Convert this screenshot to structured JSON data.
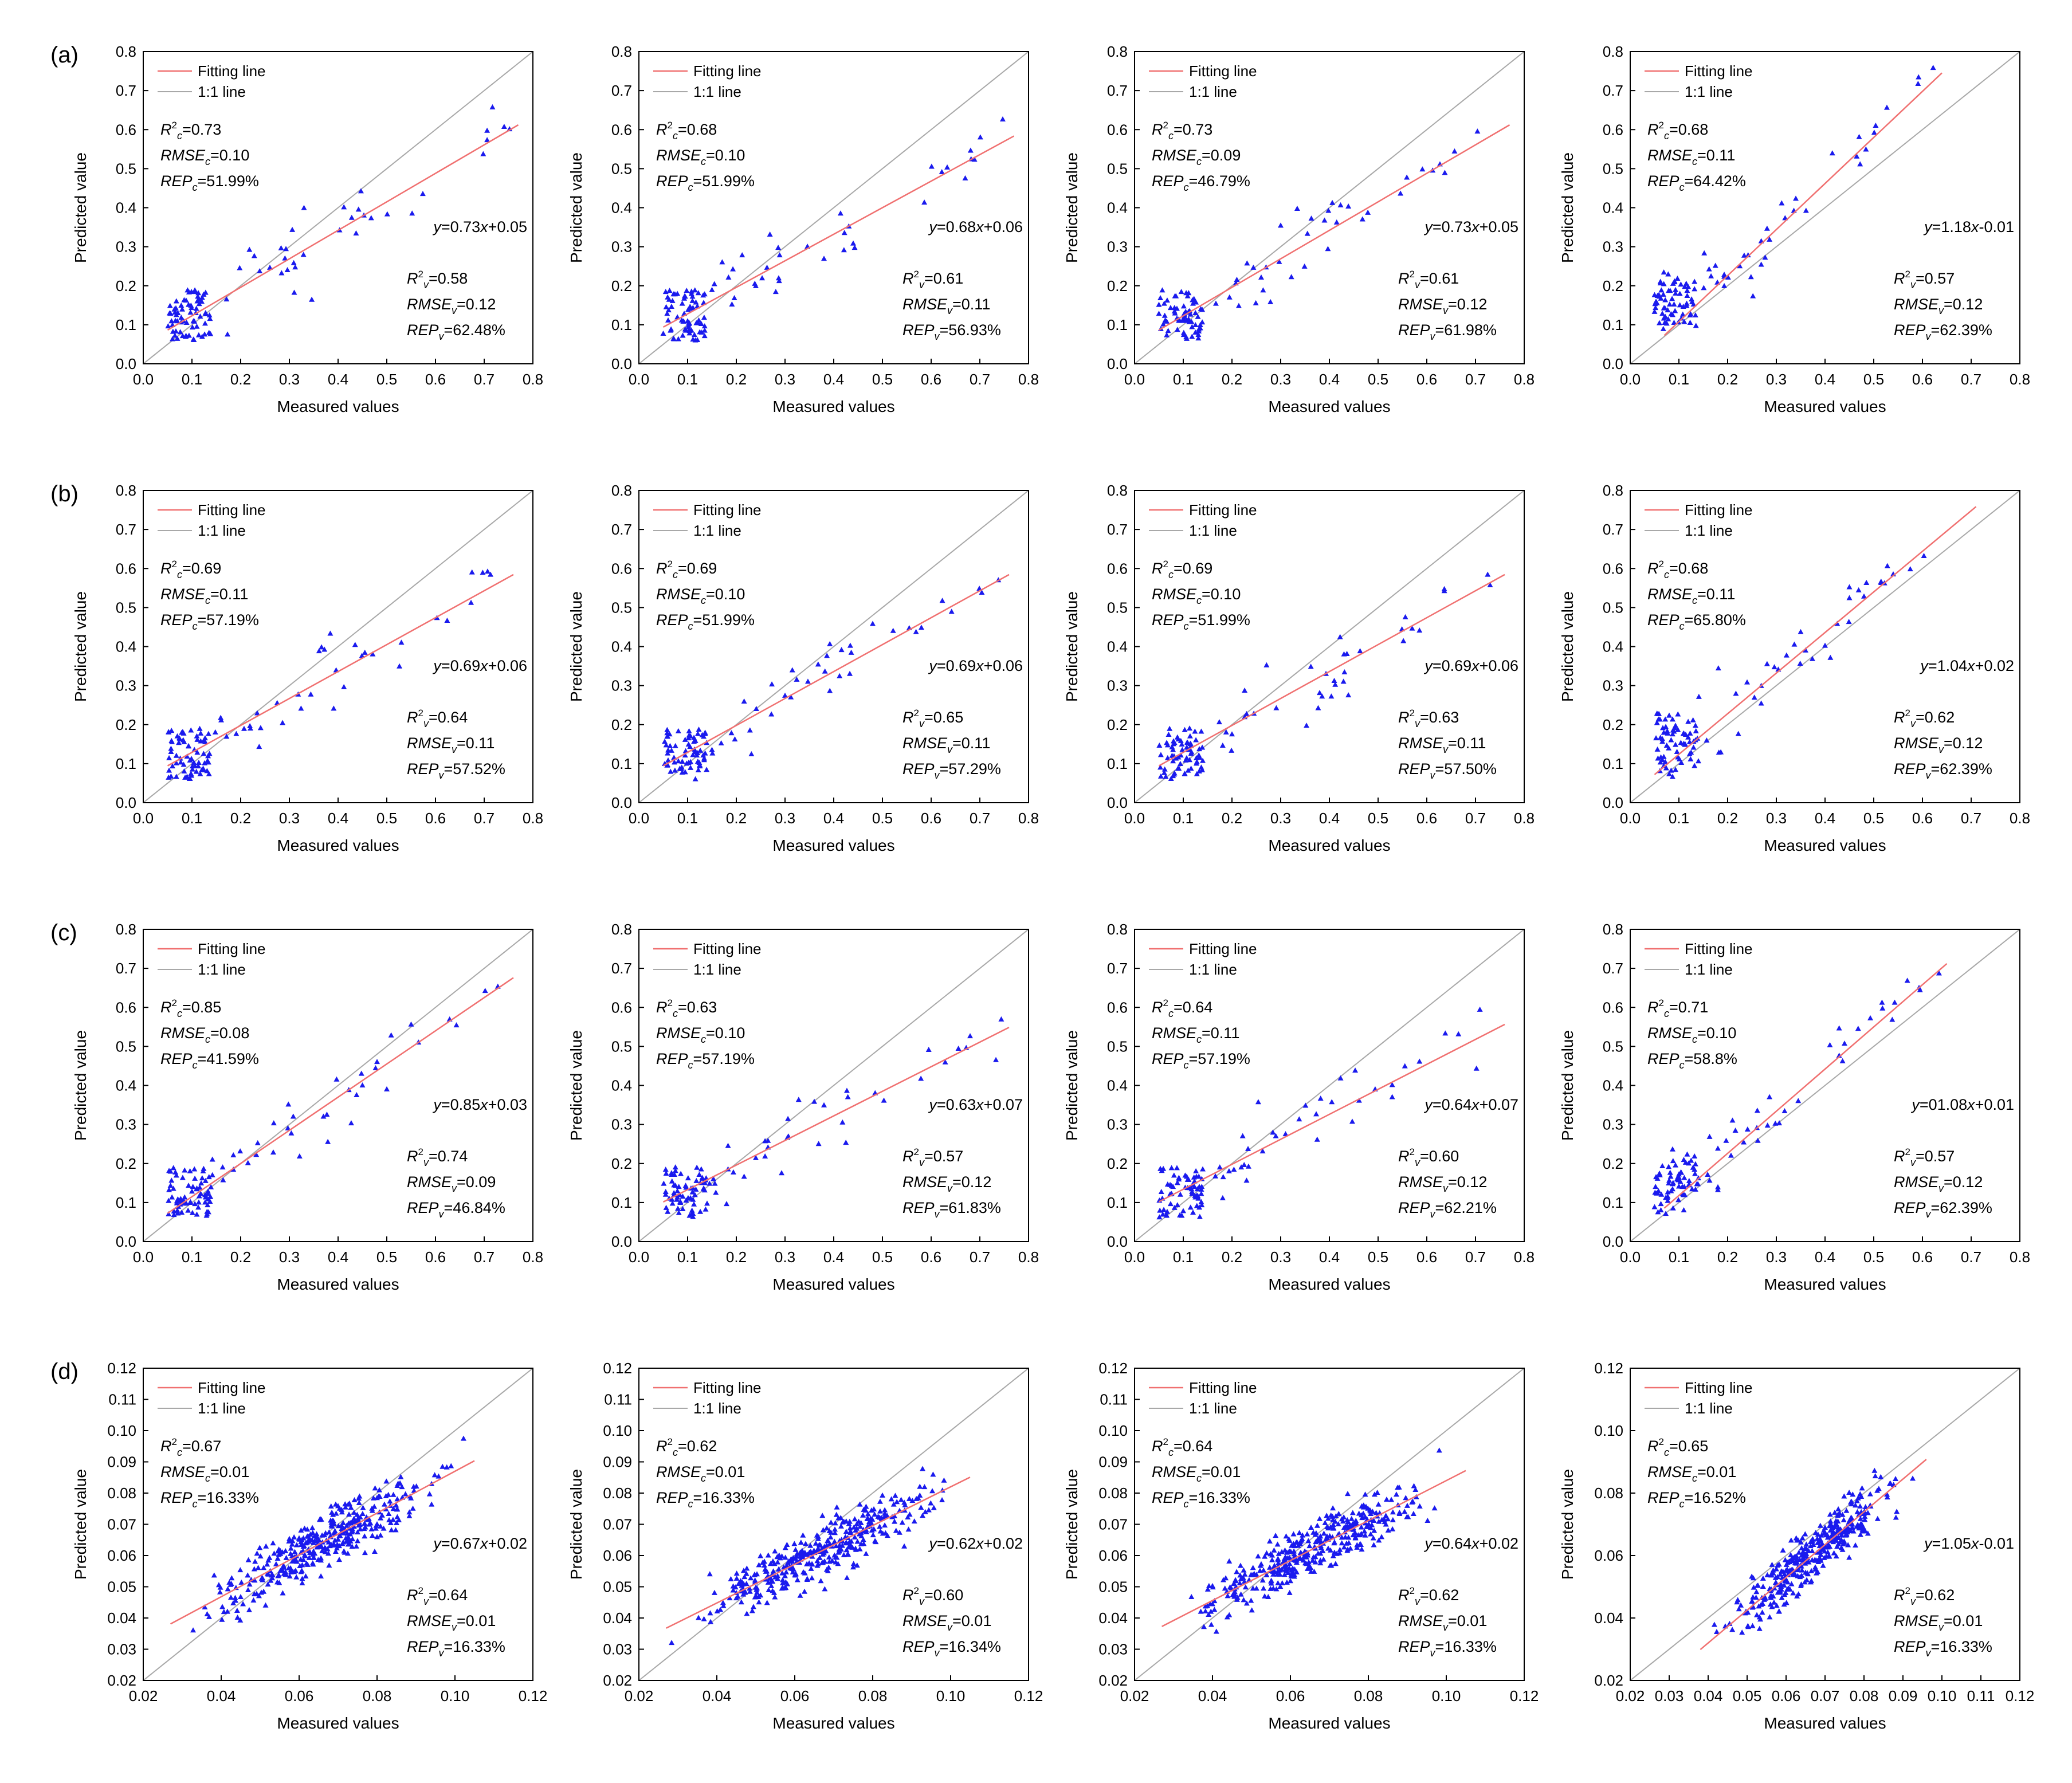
{
  "figure": {
    "row_labels": [
      "(a)",
      "(b)",
      "(c)",
      "(d)"
    ],
    "legend": {
      "fit": "Fitting line",
      "oneone": "1:1 line"
    },
    "xlabel": "Measured values",
    "ylabel": "Predicted value"
  },
  "colors": {
    "point": "#1a1aee",
    "fit": "#f07070",
    "oneone": "#a8a8a8",
    "axis": "#000000"
  },
  "chart_data": [
    {
      "type": "scatter",
      "row": 0,
      "col": 0,
      "xlim": [
        0,
        0.8
      ],
      "ylim": [
        0,
        0.8
      ],
      "xticks": [
        "0.0",
        "0.1",
        "0.2",
        "0.3",
        "0.4",
        "0.5",
        "0.6",
        "0.7",
        "0.8"
      ],
      "yticks": [
        "0.0",
        "0.1",
        "0.2",
        "0.3",
        "0.4",
        "0.5",
        "0.6",
        "0.7",
        "0.8"
      ],
      "xlabel": "Measured values",
      "ylabel": "Predicted value",
      "fit": {
        "slope": 0.73,
        "intercept": 0.05,
        "x_range": [
          0.05,
          0.77
        ],
        "equation": "y=0.73x+0.05"
      },
      "cal": {
        "r2": "0.73",
        "rmse": "0.10",
        "rep": "51.99%"
      },
      "val": {
        "r2": "0.58",
        "rmse": "0.12",
        "rep": "62.48%"
      },
      "points": []
    },
    {
      "type": "scatter",
      "row": 0,
      "col": 1,
      "xlim": [
        0,
        0.8
      ],
      "ylim": [
        0,
        0.8
      ],
      "xticks": [
        "0.0",
        "0.1",
        "0.2",
        "0.3",
        "0.4",
        "0.5",
        "0.6",
        "0.7",
        "0.8"
      ],
      "yticks": [
        "0.0",
        "0.1",
        "0.2",
        "0.3",
        "0.4",
        "0.5",
        "0.6",
        "0.7",
        "0.8"
      ],
      "xlabel": "Measured values",
      "ylabel": "Predicted value",
      "fit": {
        "slope": 0.68,
        "intercept": 0.06,
        "x_range": [
          0.05,
          0.77
        ],
        "equation": "y=0.68x+0.06"
      },
      "cal": {
        "r2": "0.68",
        "rmse": "0.10",
        "rep": "51.99%"
      },
      "val": {
        "r2": "0.61",
        "rmse": "0.11",
        "rep": "56.93%"
      },
      "points": []
    },
    {
      "type": "scatter",
      "row": 0,
      "col": 2,
      "xlim": [
        0,
        0.8
      ],
      "ylim": [
        0,
        0.8
      ],
      "xticks": [
        "0.0",
        "0.1",
        "0.2",
        "0.3",
        "0.4",
        "0.5",
        "0.6",
        "0.7",
        "0.8"
      ],
      "yticks": [
        "0.0",
        "0.1",
        "0.2",
        "0.3",
        "0.4",
        "0.5",
        "0.6",
        "0.7",
        "0.8"
      ],
      "xlabel": "Measured values",
      "ylabel": "Predicted value",
      "fit": {
        "slope": 0.73,
        "intercept": 0.05,
        "x_range": [
          0.05,
          0.77
        ],
        "equation": "y=0.73x+0.05"
      },
      "cal": {
        "r2": "0.73",
        "rmse": "0.09",
        "rep": "46.79%"
      },
      "val": {
        "r2": "0.61",
        "rmse": "0.12",
        "rep": "61.98%"
      },
      "points": []
    },
    {
      "type": "scatter",
      "row": 0,
      "col": 3,
      "xlim": [
        0,
        0.8
      ],
      "ylim": [
        0,
        0.8
      ],
      "xticks": [
        "0.0",
        "0.1",
        "0.2",
        "0.3",
        "0.4",
        "0.5",
        "0.6",
        "0.7",
        "0.8"
      ],
      "yticks": [
        "0.0",
        "0.1",
        "0.2",
        "0.3",
        "0.4",
        "0.5",
        "0.6",
        "0.7",
        "0.8"
      ],
      "xlabel": "Measured values",
      "ylabel": "Predicted value",
      "fit": {
        "slope": 1.18,
        "intercept": -0.01,
        "x_range": [
          0.07,
          0.64
        ],
        "equation": "y=1.18x-0.01"
      },
      "cal": {
        "r2": "0.68",
        "rmse": "0.11",
        "rep": "64.42%"
      },
      "val": {
        "r2": "0.57",
        "rmse": "0.12",
        "rep": "62.39%"
      },
      "points": []
    },
    {
      "type": "scatter",
      "row": 1,
      "col": 0,
      "xlim": [
        0,
        0.8
      ],
      "ylim": [
        0,
        0.8
      ],
      "xticks": [
        "0.0",
        "0.1",
        "0.2",
        "0.3",
        "0.4",
        "0.5",
        "0.6",
        "0.7",
        "0.8"
      ],
      "yticks": [
        "0.0",
        "0.1",
        "0.2",
        "0.3",
        "0.4",
        "0.5",
        "0.6",
        "0.7",
        "0.8"
      ],
      "xlabel": "Measured values",
      "ylabel": "Predicted value",
      "fit": {
        "slope": 0.69,
        "intercept": 0.06,
        "x_range": [
          0.05,
          0.76
        ],
        "equation": "y=0.69x+0.06"
      },
      "cal": {
        "r2": "0.69",
        "rmse": "0.11",
        "rep": "57.19%"
      },
      "val": {
        "r2": "0.64",
        "rmse": "0.11",
        "rep": "57.52%"
      },
      "points": []
    },
    {
      "type": "scatter",
      "row": 1,
      "col": 1,
      "xlim": [
        0,
        0.8
      ],
      "ylim": [
        0,
        0.8
      ],
      "xticks": [
        "0.0",
        "0.1",
        "0.2",
        "0.3",
        "0.4",
        "0.5",
        "0.6",
        "0.7",
        "0.8"
      ],
      "yticks": [
        "0.0",
        "0.1",
        "0.2",
        "0.3",
        "0.4",
        "0.5",
        "0.6",
        "0.7",
        "0.8"
      ],
      "xlabel": "Measured values",
      "ylabel": "Predicted value",
      "fit": {
        "slope": 0.69,
        "intercept": 0.06,
        "x_range": [
          0.05,
          0.76
        ],
        "equation": "y=0.69x+0.06"
      },
      "cal": {
        "r2": "0.69",
        "rmse": "0.10",
        "rep": "51.99%"
      },
      "val": {
        "r2": "0.65",
        "rmse": "0.11",
        "rep": "57.29%"
      },
      "points": []
    },
    {
      "type": "scatter",
      "row": 1,
      "col": 2,
      "xlim": [
        0,
        0.8
      ],
      "ylim": [
        0,
        0.8
      ],
      "xticks": [
        "0.0",
        "0.1",
        "0.2",
        "0.3",
        "0.4",
        "0.5",
        "0.6",
        "0.7",
        "0.8"
      ],
      "yticks": [
        "0.0",
        "0.1",
        "0.2",
        "0.3",
        "0.4",
        "0.5",
        "0.6",
        "0.7",
        "0.8"
      ],
      "xlabel": "Measured values",
      "ylabel": "Predicted value",
      "fit": {
        "slope": 0.69,
        "intercept": 0.06,
        "x_range": [
          0.05,
          0.76
        ],
        "equation": "y=0.69x+0.06"
      },
      "cal": {
        "r2": "0.69",
        "rmse": "0.10",
        "rep": "51.99%"
      },
      "val": {
        "r2": "0.63",
        "rmse": "0.11",
        "rep": "57.50%"
      },
      "points": []
    },
    {
      "type": "scatter",
      "row": 1,
      "col": 3,
      "xlim": [
        0,
        0.8
      ],
      "ylim": [
        0,
        0.8
      ],
      "xticks": [
        "0.0",
        "0.1",
        "0.2",
        "0.3",
        "0.4",
        "0.5",
        "0.6",
        "0.7",
        "0.8"
      ],
      "yticks": [
        "0.0",
        "0.1",
        "0.2",
        "0.3",
        "0.4",
        "0.5",
        "0.6",
        "0.7",
        "0.8"
      ],
      "xlabel": "Measured values",
      "ylabel": "Predicted value",
      "fit": {
        "slope": 1.04,
        "intercept": 0.02,
        "x_range": [
          0.05,
          0.71
        ],
        "equation": "y=1.04x+0.02"
      },
      "cal": {
        "r2": "0.68",
        "rmse": "0.11",
        "rep": "65.80%"
      },
      "val": {
        "r2": "0.62",
        "rmse": "0.12",
        "rep": "62.39%"
      },
      "points": []
    },
    {
      "type": "scatter",
      "row": 2,
      "col": 0,
      "xlim": [
        0,
        0.8
      ],
      "ylim": [
        0,
        0.8
      ],
      "xticks": [
        "0.0",
        "0.1",
        "0.2",
        "0.3",
        "0.4",
        "0.5",
        "0.6",
        "0.7",
        "0.8"
      ],
      "yticks": [
        "0.0",
        "0.1",
        "0.2",
        "0.3",
        "0.4",
        "0.5",
        "0.6",
        "0.7",
        "0.8"
      ],
      "xlabel": "Measured values",
      "ylabel": "Predicted value",
      "fit": {
        "slope": 0.85,
        "intercept": 0.03,
        "x_range": [
          0.05,
          0.76
        ],
        "equation": "y=0.85x+0.03"
      },
      "cal": {
        "r2": "0.85",
        "rmse": "0.08",
        "rep": "41.59%"
      },
      "val": {
        "r2": "0.74",
        "rmse": "0.09",
        "rep": "46.84%"
      },
      "points": []
    },
    {
      "type": "scatter",
      "row": 2,
      "col": 1,
      "xlim": [
        0,
        0.8
      ],
      "ylim": [
        0,
        0.8
      ],
      "xticks": [
        "0.0",
        "0.1",
        "0.2",
        "0.3",
        "0.4",
        "0.5",
        "0.6",
        "0.7",
        "0.8"
      ],
      "yticks": [
        "0.0",
        "0.1",
        "0.2",
        "0.3",
        "0.4",
        "0.5",
        "0.6",
        "0.7",
        "0.8"
      ],
      "xlabel": "Measured values",
      "ylabel": "Predicted value",
      "fit": {
        "slope": 0.63,
        "intercept": 0.07,
        "x_range": [
          0.05,
          0.76
        ],
        "equation": "y=0.63x+0.07"
      },
      "cal": {
        "r2": "0.63",
        "rmse": "0.10",
        "rep": "57.19%"
      },
      "val": {
        "r2": "0.57",
        "rmse": "0.12",
        "rep": "61.83%"
      },
      "points": []
    },
    {
      "type": "scatter",
      "row": 2,
      "col": 2,
      "xlim": [
        0,
        0.8
      ],
      "ylim": [
        0,
        0.8
      ],
      "xticks": [
        "0.0",
        "0.1",
        "0.2",
        "0.3",
        "0.4",
        "0.5",
        "0.6",
        "0.7",
        "0.8"
      ],
      "yticks": [
        "0.0",
        "0.1",
        "0.2",
        "0.3",
        "0.4",
        "0.5",
        "0.6",
        "0.7",
        "0.8"
      ],
      "xlabel": "Measured values",
      "ylabel": "Predicted value",
      "fit": {
        "slope": 0.64,
        "intercept": 0.07,
        "x_range": [
          0.05,
          0.76
        ],
        "equation": "y=0.64x+0.07"
      },
      "cal": {
        "r2": "0.64",
        "rmse": "0.11",
        "rep": "57.19%"
      },
      "val": {
        "r2": "0.60",
        "rmse": "0.12",
        "rep": "62.21%"
      },
      "points": []
    },
    {
      "type": "scatter",
      "row": 2,
      "col": 3,
      "xlim": [
        0,
        0.8
      ],
      "ylim": [
        0,
        0.8
      ],
      "xticks": [
        "0.0",
        "0.1",
        "0.2",
        "0.3",
        "0.4",
        "0.5",
        "0.6",
        "0.7",
        "0.8"
      ],
      "yticks": [
        "0.0",
        "0.1",
        "0.2",
        "0.3",
        "0.4",
        "0.5",
        "0.6",
        "0.7",
        "0.8"
      ],
      "xlabel": "Measured values",
      "ylabel": "Predicted value",
      "fit": {
        "slope": 1.08,
        "intercept": 0.01,
        "x_range": [
          0.07,
          0.65
        ],
        "equation": "y=01.08x+0.01"
      },
      "cal": {
        "r2": "0.71",
        "rmse": "0.10",
        "rep": "58.8%"
      },
      "val": {
        "r2": "0.57",
        "rmse": "0.12",
        "rep": "62.39%"
      },
      "points": []
    },
    {
      "type": "scatter",
      "row": 3,
      "col": 0,
      "xlim": [
        0.02,
        0.12
      ],
      "ylim": [
        0.02,
        0.12
      ],
      "xticks": [
        "0.02",
        "0.04",
        "0.06",
        "0.08",
        "0.10",
        "0.12"
      ],
      "yticks": [
        "0.02",
        "0.03",
        "0.04",
        "0.05",
        "0.06",
        "0.07",
        "0.08",
        "0.09",
        "0.10",
        "0.11",
        "0.12"
      ],
      "xlabel": "Measured values",
      "ylabel": "Predicted value",
      "fit": {
        "slope": 0.67,
        "intercept": 0.02,
        "x_range": [
          0.027,
          0.105
        ],
        "equation": "y=0.67x+0.02"
      },
      "cal": {
        "r2": "0.67",
        "rmse": "0.01",
        "rep": "16.33%"
      },
      "val": {
        "r2": "0.64",
        "rmse": "0.01",
        "rep": "16.33%"
      },
      "points": []
    },
    {
      "type": "scatter",
      "row": 3,
      "col": 1,
      "xlim": [
        0.02,
        0.12
      ],
      "ylim": [
        0.02,
        0.12
      ],
      "xticks": [
        "0.02",
        "0.04",
        "0.06",
        "0.08",
        "0.10",
        "0.12"
      ],
      "yticks": [
        "0.02",
        "0.03",
        "0.04",
        "0.05",
        "0.06",
        "0.07",
        "0.08",
        "0.09",
        "0.10",
        "0.11",
        "0.12"
      ],
      "xlabel": "Measured values",
      "ylabel": "Predicted value",
      "fit": {
        "slope": 0.62,
        "intercept": 0.02,
        "x_range": [
          0.027,
          0.105
        ],
        "equation": "y=0.62x+0.02"
      },
      "cal": {
        "r2": "0.62",
        "rmse": "0.01",
        "rep": "16.33%"
      },
      "val": {
        "r2": "0.60",
        "rmse": "0.01",
        "rep": "16.34%"
      },
      "points": []
    },
    {
      "type": "scatter",
      "row": 3,
      "col": 2,
      "xlim": [
        0.02,
        0.12
      ],
      "ylim": [
        0.02,
        0.12
      ],
      "xticks": [
        "0.02",
        "0.04",
        "0.06",
        "0.08",
        "0.10",
        "0.12"
      ],
      "yticks": [
        "0.02",
        "0.03",
        "0.04",
        "0.05",
        "0.06",
        "0.07",
        "0.08",
        "0.09",
        "0.10",
        "0.11",
        "0.12"
      ],
      "xlabel": "Measured values",
      "ylabel": "Predicted value",
      "fit": {
        "slope": 0.64,
        "intercept": 0.02,
        "x_range": [
          0.027,
          0.105
        ],
        "equation": "y=0.64x+0.02"
      },
      "cal": {
        "r2": "0.64",
        "rmse": "0.01",
        "rep": "16.33%"
      },
      "val": {
        "r2": "0.62",
        "rmse": "0.01",
        "rep": "16.33%"
      },
      "points": []
    },
    {
      "type": "scatter",
      "row": 3,
      "col": 3,
      "xlim": [
        0.02,
        0.12
      ],
      "ylim": [
        0.02,
        0.12
      ],
      "xticks": [
        "0.02",
        "0.03",
        "0.04",
        "0.05",
        "0.06",
        "0.07",
        "0.08",
        "0.09",
        "0.10",
        "0.11",
        "0.12"
      ],
      "yticks": [
        "0.02",
        "0.04",
        "0.06",
        "0.08",
        "0.10",
        "0.12"
      ],
      "xlabel": "Measured values",
      "ylabel": "Predicted value",
      "fit": {
        "slope": 1.05,
        "intercept": -0.01,
        "x_range": [
          0.038,
          0.096
        ],
        "equation": "y=1.05x-0.01"
      },
      "cal": {
        "r2": "0.65",
        "rmse": "0.01",
        "rep": "16.52%"
      },
      "val": {
        "r2": "0.62",
        "rmse": "0.01",
        "rep": "16.33%"
      },
      "points": []
    }
  ]
}
